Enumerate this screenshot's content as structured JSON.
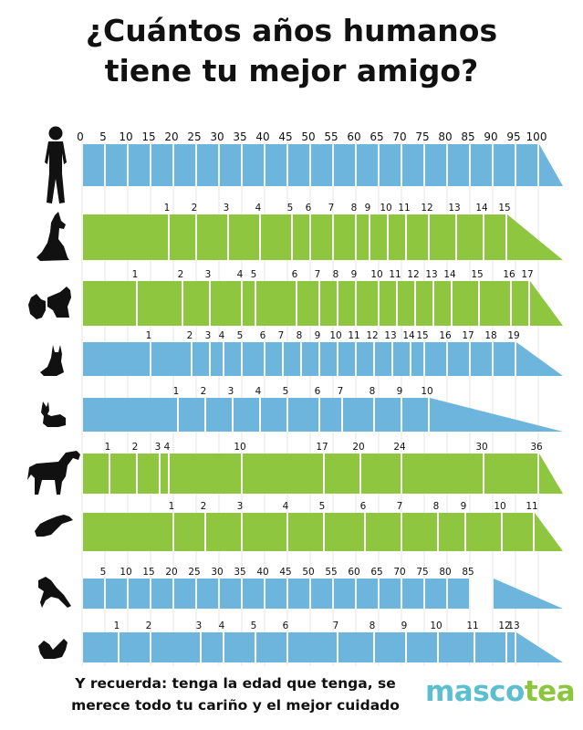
{
  "title": {
    "line1": "¿Cuántos años humanos",
    "line2": "tiene tu mejor amigo?"
  },
  "footer": {
    "line1": "Y recuerda: tenga la edad que tenga, se",
    "line2": "merece todo tu cariño y el mejor cuidado",
    "brand_a": "masco",
    "brand_b": "tea"
  },
  "colors": {
    "blue": "#6db5dd",
    "green": "#8ec63f",
    "silhouette": "#111111",
    "brand_blue": "#5bbfd0",
    "brand_green": "#8cc63f"
  },
  "chart_data": {
    "type": "bar",
    "title": "¿Cuántos años humanos tiene tu mejor amigo?",
    "x_unit": "human years",
    "xlim": [
      0,
      105
    ],
    "series": [
      {
        "icon": "human-icon",
        "color": "blue",
        "tail_from": 100,
        "points": [
          {
            "label": "0",
            "human": 0
          },
          {
            "label": "5",
            "human": 5
          },
          {
            "label": "10",
            "human": 10
          },
          {
            "label": "15",
            "human": 15
          },
          {
            "label": "20",
            "human": 20
          },
          {
            "label": "25",
            "human": 25
          },
          {
            "label": "30",
            "human": 30
          },
          {
            "label": "35",
            "human": 35
          },
          {
            "label": "40",
            "human": 40
          },
          {
            "label": "45",
            "human": 45
          },
          {
            "label": "50",
            "human": 50
          },
          {
            "label": "55",
            "human": 55
          },
          {
            "label": "60",
            "human": 60
          },
          {
            "label": "65",
            "human": 65
          },
          {
            "label": "70",
            "human": 70
          },
          {
            "label": "75",
            "human": 75
          },
          {
            "label": "80",
            "human": 80
          },
          {
            "label": "85",
            "human": 85
          },
          {
            "label": "90",
            "human": 90
          },
          {
            "label": "95",
            "human": 95
          },
          {
            "label": "100",
            "human": 100
          }
        ]
      },
      {
        "icon": "dog-icon",
        "color": "green",
        "tail_from": 93,
        "points": [
          {
            "label": "1",
            "human": 19
          },
          {
            "label": "2",
            "human": 25
          },
          {
            "label": "3",
            "human": 32
          },
          {
            "label": "4",
            "human": 39
          },
          {
            "label": "5",
            "human": 46
          },
          {
            "label": "6",
            "human": 50
          },
          {
            "label": "7",
            "human": 55
          },
          {
            "label": "8",
            "human": 60
          },
          {
            "label": "9",
            "human": 63
          },
          {
            "label": "10",
            "human": 67
          },
          {
            "label": "11",
            "human": 71
          },
          {
            "label": "12",
            "human": 76
          },
          {
            "label": "13",
            "human": 82
          },
          {
            "label": "14",
            "human": 88
          },
          {
            "label": "15",
            "human": 93
          }
        ]
      },
      {
        "icon": "small-dog-icon",
        "color": "green",
        "tail_from": 98,
        "points": [
          {
            "label": "1",
            "human": 12
          },
          {
            "label": "2",
            "human": 22
          },
          {
            "label": "3",
            "human": 28
          },
          {
            "label": "4",
            "human": 35
          },
          {
            "label": "5",
            "human": 38
          },
          {
            "label": "6",
            "human": 47
          },
          {
            "label": "7",
            "human": 52
          },
          {
            "label": "8",
            "human": 56
          },
          {
            "label": "9",
            "human": 60
          },
          {
            "label": "10",
            "human": 65
          },
          {
            "label": "11",
            "human": 69
          },
          {
            "label": "12",
            "human": 73
          },
          {
            "label": "13",
            "human": 77
          },
          {
            "label": "14",
            "human": 81
          },
          {
            "label": "15",
            "human": 87
          },
          {
            "label": "16",
            "human": 94
          },
          {
            "label": "17",
            "human": 98
          }
        ]
      },
      {
        "icon": "cat-icon",
        "color": "blue",
        "tail_from": 95,
        "points": [
          {
            "label": "1",
            "human": 15
          },
          {
            "label": "2",
            "human": 24
          },
          {
            "label": "3",
            "human": 28
          },
          {
            "label": "4",
            "human": 31
          },
          {
            "label": "5",
            "human": 35
          },
          {
            "label": "6",
            "human": 40
          },
          {
            "label": "7",
            "human": 44
          },
          {
            "label": "8",
            "human": 48
          },
          {
            "label": "9",
            "human": 52
          },
          {
            "label": "10",
            "human": 56
          },
          {
            "label": "11",
            "human": 60
          },
          {
            "label": "12",
            "human": 64
          },
          {
            "label": "13",
            "human": 68
          },
          {
            "label": "14",
            "human": 72
          },
          {
            "label": "15",
            "human": 75
          },
          {
            "label": "16",
            "human": 80
          },
          {
            "label": "17",
            "human": 85
          },
          {
            "label": "18",
            "human": 90
          },
          {
            "label": "19",
            "human": 95
          }
        ]
      },
      {
        "icon": "rabbit-icon",
        "color": "blue",
        "tail_from": 76,
        "points": [
          {
            "label": "1",
            "human": 21
          },
          {
            "label": "2",
            "human": 27
          },
          {
            "label": "3",
            "human": 33
          },
          {
            "label": "4",
            "human": 39
          },
          {
            "label": "5",
            "human": 45
          },
          {
            "label": "6",
            "human": 52
          },
          {
            "label": "7",
            "human": 57
          },
          {
            "label": "8",
            "human": 64
          },
          {
            "label": "9",
            "human": 70
          },
          {
            "label": "10",
            "human": 76
          }
        ]
      },
      {
        "icon": "horse-icon",
        "color": "green",
        "tail_from": 100,
        "points": [
          {
            "label": "1",
            "human": 6
          },
          {
            "label": "2",
            "human": 12
          },
          {
            "label": "3",
            "human": 17
          },
          {
            "label": "4",
            "human": 19
          },
          {
            "label": "10",
            "human": 35
          },
          {
            "label": "17",
            "human": 53
          },
          {
            "label": "20",
            "human": 61
          },
          {
            "label": "24",
            "human": 70
          },
          {
            "label": "30",
            "human": 88
          },
          {
            "label": "36",
            "human": 100
          }
        ]
      },
      {
        "icon": "ferret-icon",
        "color": "green",
        "tail_from": 99,
        "points": [
          {
            "label": "1",
            "human": 20
          },
          {
            "label": "2",
            "human": 27
          },
          {
            "label": "3",
            "human": 35
          },
          {
            "label": "4",
            "human": 45
          },
          {
            "label": "5",
            "human": 53
          },
          {
            "label": "6",
            "human": 62
          },
          {
            "label": "7",
            "human": 70
          },
          {
            "label": "8",
            "human": 78
          },
          {
            "label": "9",
            "human": 84
          },
          {
            "label": "10",
            "human": 92
          },
          {
            "label": "11",
            "human": 99
          }
        ]
      },
      {
        "icon": "parrot-icon",
        "color": "blue",
        "tail_from": 90,
        "points": [
          {
            "label": "5",
            "human": 5
          },
          {
            "label": "10",
            "human": 10
          },
          {
            "label": "15",
            "human": 15
          },
          {
            "label": "20",
            "human": 20
          },
          {
            "label": "25",
            "human": 25
          },
          {
            "label": "30",
            "human": 30
          },
          {
            "label": "35",
            "human": 35
          },
          {
            "label": "40",
            "human": 40
          },
          {
            "label": "45",
            "human": 45
          },
          {
            "label": "50",
            "human": 50
          },
          {
            "label": "55",
            "human": 55
          },
          {
            "label": "60",
            "human": 60
          },
          {
            "label": "65",
            "human": 65
          },
          {
            "label": "70",
            "human": 70
          },
          {
            "label": "75",
            "human": 75
          },
          {
            "label": "80",
            "human": 80
          },
          {
            "label": "85",
            "human": 85
          }
        ]
      },
      {
        "icon": "squirrel-icon",
        "color": "blue",
        "tail_from": 95,
        "points": [
          {
            "label": "1",
            "human": 8
          },
          {
            "label": "2",
            "human": 15
          },
          {
            "label": "3",
            "human": 26
          },
          {
            "label": "4",
            "human": 31
          },
          {
            "label": "5",
            "human": 38
          },
          {
            "label": "6",
            "human": 45
          },
          {
            "label": "7",
            "human": 56
          },
          {
            "label": "8",
            "human": 64
          },
          {
            "label": "9",
            "human": 71
          },
          {
            "label": "10",
            "human": 78
          },
          {
            "label": "11",
            "human": 86
          },
          {
            "label": "12",
            "human": 93
          },
          {
            "label": "13",
            "human": 95
          }
        ]
      }
    ]
  }
}
